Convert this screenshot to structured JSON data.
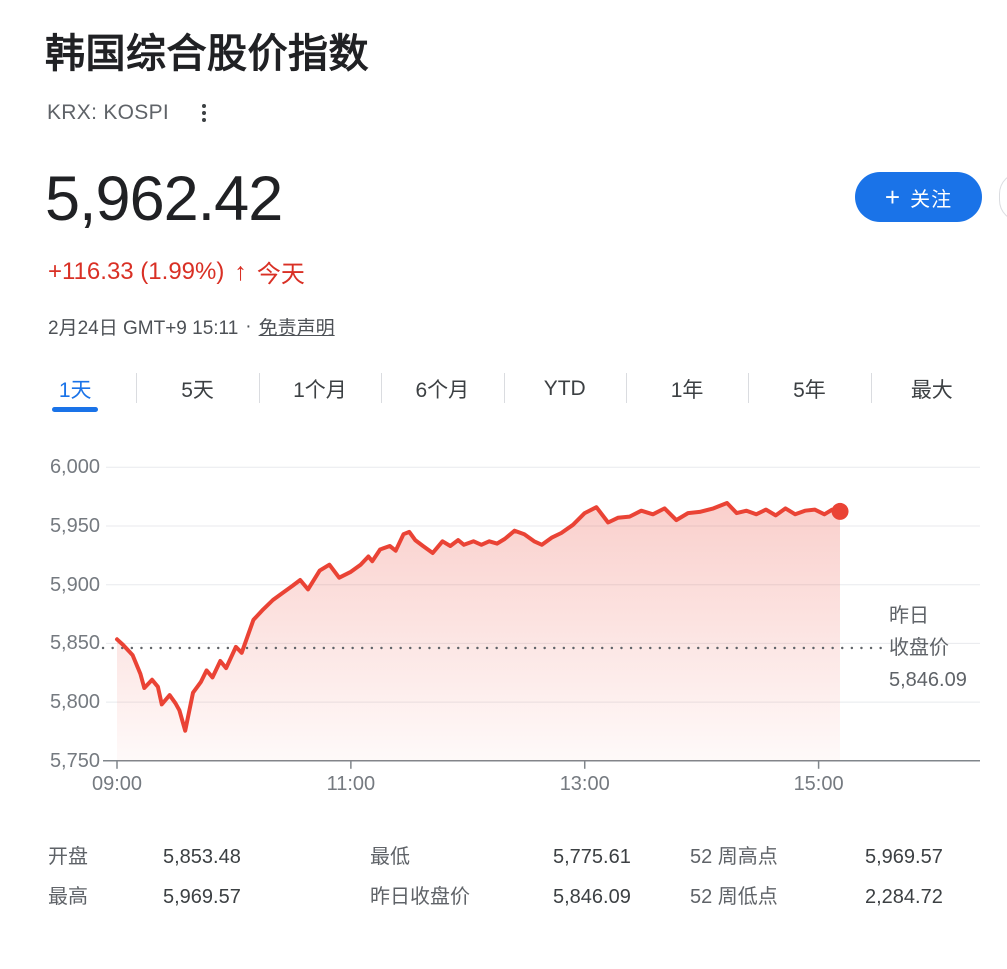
{
  "header": {
    "title": "韩国综合股价指数",
    "symbol": "KRX: KOSPI",
    "price": "5,962.42",
    "change": "+116.33 (1.99%)",
    "change_arrow": "↑",
    "period_label": "今天",
    "timestamp": "2月24日 GMT+9 15:11",
    "separator": "·",
    "disclaimer_label": "免责声明",
    "follow_plus": "+",
    "follow_label": "关注",
    "accent_color": "#1a73e8",
    "change_color": "#d93025"
  },
  "tabs": [
    {
      "label": "1天",
      "active": true
    },
    {
      "label": "5天",
      "active": false
    },
    {
      "label": "1个月",
      "active": false
    },
    {
      "label": "6个月",
      "active": false
    },
    {
      "label": "YTD",
      "active": false
    },
    {
      "label": "1年",
      "active": false
    },
    {
      "label": "5年",
      "active": false
    },
    {
      "label": "最大",
      "active": false
    }
  ],
  "chart_data": {
    "type": "area",
    "line_color": "#ea4335",
    "grid": true,
    "legend_position": "none",
    "x_unit": "minutes since 09:00",
    "x_domain": [
      0,
      390
    ],
    "x_ticks": [
      {
        "label": "09:00",
        "t": 0
      },
      {
        "label": "11:00",
        "t": 120
      },
      {
        "label": "13:00",
        "t": 240
      },
      {
        "label": "15:00",
        "t": 360
      }
    ],
    "y_domain": [
      5750,
      6000
    ],
    "y_tick_values": [
      6000,
      5950,
      5900,
      5850,
      5800,
      5750
    ],
    "y_tick_labels": [
      "6,000",
      "5,950",
      "5,900",
      "5,850",
      "5,800",
      "5,750"
    ],
    "prev_close": 5846.09,
    "prev_close_label": [
      "昨日",
      "收盘价",
      "5,846.09"
    ],
    "series": [
      {
        "name": "KOSPI",
        "points": [
          [
            0,
            5853.48
          ],
          [
            3,
            5849
          ],
          [
            8,
            5840
          ],
          [
            12,
            5824
          ],
          [
            14,
            5812
          ],
          [
            18,
            5819
          ],
          [
            21,
            5813
          ],
          [
            23,
            5798
          ],
          [
            27,
            5806
          ],
          [
            30,
            5799
          ],
          [
            32,
            5793
          ],
          [
            35,
            5775.61
          ],
          [
            39,
            5808
          ],
          [
            43,
            5817
          ],
          [
            46,
            5827
          ],
          [
            49,
            5821
          ],
          [
            53,
            5835
          ],
          [
            56,
            5829
          ],
          [
            61,
            5847
          ],
          [
            64,
            5842
          ],
          [
            70,
            5870
          ],
          [
            75,
            5879
          ],
          [
            80,
            5887
          ],
          [
            85,
            5893
          ],
          [
            90,
            5899
          ],
          [
            94,
            5904
          ],
          [
            98,
            5896
          ],
          [
            104,
            5912
          ],
          [
            109,
            5917
          ],
          [
            114,
            5906
          ],
          [
            120,
            5911
          ],
          [
            125,
            5917
          ],
          [
            129,
            5924
          ],
          [
            131,
            5920
          ],
          [
            135,
            5930
          ],
          [
            140,
            5933
          ],
          [
            143,
            5929
          ],
          [
            147,
            5943
          ],
          [
            150,
            5945
          ],
          [
            153,
            5938
          ],
          [
            157,
            5933
          ],
          [
            162,
            5927
          ],
          [
            167,
            5937
          ],
          [
            171,
            5933
          ],
          [
            175,
            5938
          ],
          [
            178,
            5934
          ],
          [
            183,
            5937
          ],
          [
            187,
            5934
          ],
          [
            191,
            5937
          ],
          [
            195,
            5935
          ],
          [
            199,
            5939
          ],
          [
            204,
            5946
          ],
          [
            209,
            5943
          ],
          [
            214,
            5937
          ],
          [
            218,
            5934
          ],
          [
            223,
            5940
          ],
          [
            228,
            5944
          ],
          [
            234,
            5951
          ],
          [
            240,
            5961
          ],
          [
            246,
            5966
          ],
          [
            252,
            5953
          ],
          [
            257,
            5957
          ],
          [
            263,
            5958
          ],
          [
            269,
            5963
          ],
          [
            275,
            5960
          ],
          [
            281,
            5965
          ],
          [
            287,
            5955
          ],
          [
            293,
            5961
          ],
          [
            299,
            5962
          ],
          [
            306,
            5965
          ],
          [
            313,
            5969.57
          ],
          [
            318,
            5961
          ],
          [
            323,
            5963
          ],
          [
            328,
            5960
          ],
          [
            333,
            5964
          ],
          [
            338,
            5959
          ],
          [
            343,
            5965
          ],
          [
            348,
            5960
          ],
          [
            353,
            5963
          ],
          [
            358,
            5964
          ],
          [
            363,
            5960
          ],
          [
            367,
            5964
          ],
          [
            371,
            5962.42
          ]
        ]
      }
    ]
  },
  "stats": [
    {
      "label": "开盘",
      "value": "5,853.48"
    },
    {
      "label": "最高",
      "value": "5,969.57"
    },
    {
      "label": "最低",
      "value": "5,775.61"
    },
    {
      "label": "昨日收盘价",
      "value": "5,846.09"
    },
    {
      "label": "52 周高点",
      "value": "5,969.57"
    },
    {
      "label": "52 周低点",
      "value": "2,284.72"
    }
  ]
}
